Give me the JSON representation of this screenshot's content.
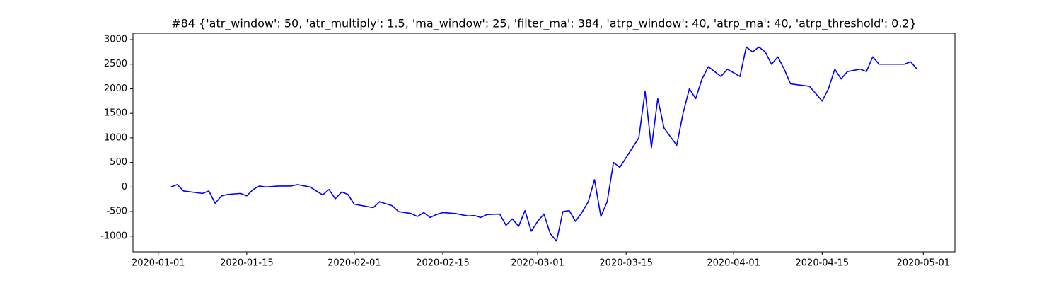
{
  "chart_data": {
    "type": "line",
    "title": "#84 {'atr_window': 50, 'atr_multiply': 1.5, 'ma_window': 25, 'filter_ma': 384, 'atrp_window': 40, 'atrp_ma': 40, 'atrp_threshold': 0.2}",
    "x": [
      "2020-01-03",
      "2020-01-04",
      "2020-01-05",
      "2020-01-08",
      "2020-01-09",
      "2020-01-10",
      "2020-01-11",
      "2020-01-12",
      "2020-01-14",
      "2020-01-15",
      "2020-01-16",
      "2020-01-17",
      "2020-01-18",
      "2020-01-20",
      "2020-01-22",
      "2020-01-23",
      "2020-01-25",
      "2020-01-27",
      "2020-01-28",
      "2020-01-29",
      "2020-01-30",
      "2020-01-31",
      "2020-02-01",
      "2020-02-04",
      "2020-02-05",
      "2020-02-07",
      "2020-02-08",
      "2020-02-10",
      "2020-02-11",
      "2020-02-12",
      "2020-02-13",
      "2020-02-14",
      "2020-02-15",
      "2020-02-17",
      "2020-02-19",
      "2020-02-20",
      "2020-02-21",
      "2020-02-22",
      "2020-02-24",
      "2020-02-25",
      "2020-02-26",
      "2020-02-27",
      "2020-02-28",
      "2020-02-29",
      "2020-03-01",
      "2020-03-02",
      "2020-03-03",
      "2020-03-04",
      "2020-03-05",
      "2020-03-06",
      "2020-03-07",
      "2020-03-08",
      "2020-03-09",
      "2020-03-10",
      "2020-03-11",
      "2020-03-12",
      "2020-03-13",
      "2020-03-14",
      "2020-03-17",
      "2020-03-18",
      "2020-03-19",
      "2020-03-20",
      "2020-03-21",
      "2020-03-23",
      "2020-03-24",
      "2020-03-25",
      "2020-03-26",
      "2020-03-27",
      "2020-03-28",
      "2020-03-30",
      "2020-03-31",
      "2020-04-02",
      "2020-04-03",
      "2020-04-04",
      "2020-04-05",
      "2020-04-06",
      "2020-04-07",
      "2020-04-08",
      "2020-04-09",
      "2020-04-10",
      "2020-04-13",
      "2020-04-14",
      "2020-04-15",
      "2020-04-16",
      "2020-04-17",
      "2020-04-18",
      "2020-04-19",
      "2020-04-21",
      "2020-04-22",
      "2020-04-23",
      "2020-04-24",
      "2020-04-25",
      "2020-04-28",
      "2020-04-29",
      "2020-04-30"
    ],
    "series": [
      {
        "color": "#0000ff",
        "values": [
          0,
          50,
          -80,
          -130,
          -80,
          -330,
          -180,
          -150,
          -130,
          -180,
          -50,
          20,
          0,
          20,
          20,
          50,
          0,
          -160,
          -50,
          -240,
          -100,
          -150,
          -350,
          -420,
          -300,
          -380,
          -500,
          -540,
          -600,
          -520,
          -620,
          -560,
          -520,
          -540,
          -590,
          -580,
          -620,
          -560,
          -550,
          -780,
          -650,
          -800,
          -480,
          -900,
          -700,
          -550,
          -950,
          -1100,
          -500,
          -480,
          -700,
          -520,
          -300,
          150,
          -600,
          -300,
          500,
          400,
          1000,
          1950,
          800,
          1800,
          1200,
          850,
          1500,
          2000,
          1800,
          2200,
          2450,
          2250,
          2400,
          2250,
          2850,
          2750,
          2850,
          2750,
          2500,
          2650,
          2400,
          2100,
          2050,
          1900,
          1750,
          2000,
          2400,
          2200,
          2350,
          2400,
          2350,
          2650,
          2500,
          2500,
          2500,
          2550,
          2400
        ]
      }
    ],
    "xlim": [
      "2019-12-28",
      "2020-05-06"
    ],
    "xticks": [
      "2020-01-01",
      "2020-01-15",
      "2020-02-01",
      "2020-02-15",
      "2020-03-01",
      "2020-03-15",
      "2020-04-01",
      "2020-04-15",
      "2020-05-01"
    ],
    "ylim": [
      -1320,
      3130
    ],
    "yticks": [
      -1000,
      -500,
      0,
      500,
      1000,
      1500,
      2000,
      2500,
      3000
    ]
  }
}
